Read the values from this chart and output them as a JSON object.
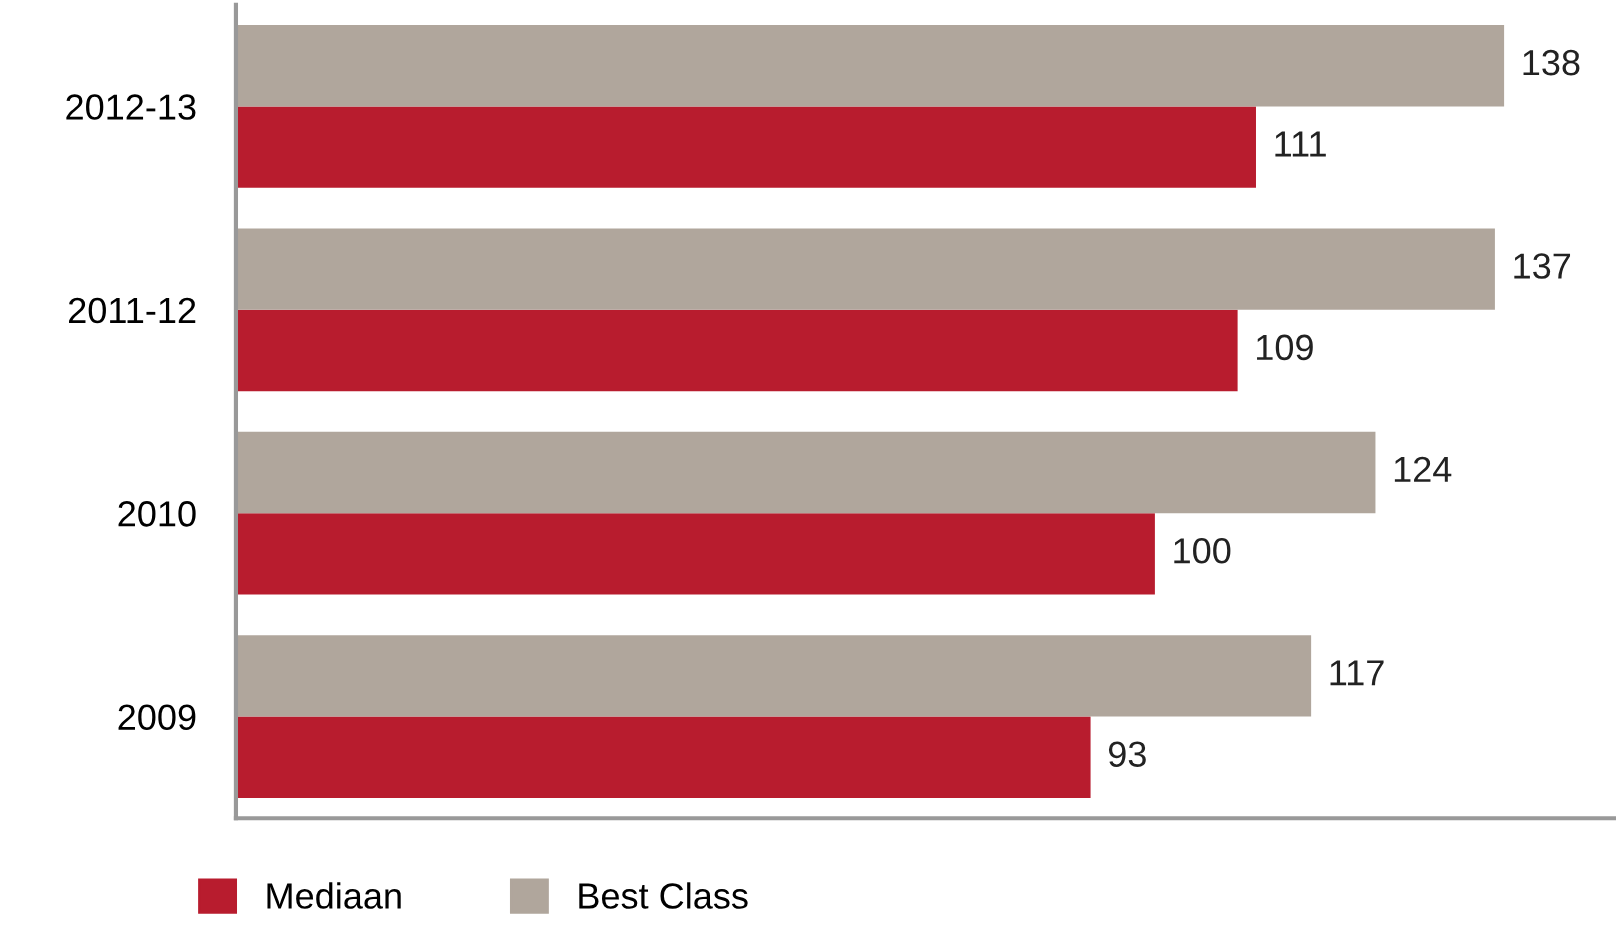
{
  "chart_data": {
    "type": "bar",
    "orientation": "horizontal",
    "categories": [
      "2012-13",
      "2011-12",
      "2010",
      "2009"
    ],
    "series": [
      {
        "name": "Mediaan",
        "color": "#b81c2e",
        "values": [
          111,
          109,
          100,
          93
        ]
      },
      {
        "name": "Best Class",
        "color": "#b0a69c",
        "values": [
          138,
          137,
          124,
          117
        ]
      }
    ],
    "xlim": [
      0,
      150
    ],
    "tick_labels": "y",
    "data_labels": true,
    "grid": false,
    "legend": "bottom left"
  }
}
